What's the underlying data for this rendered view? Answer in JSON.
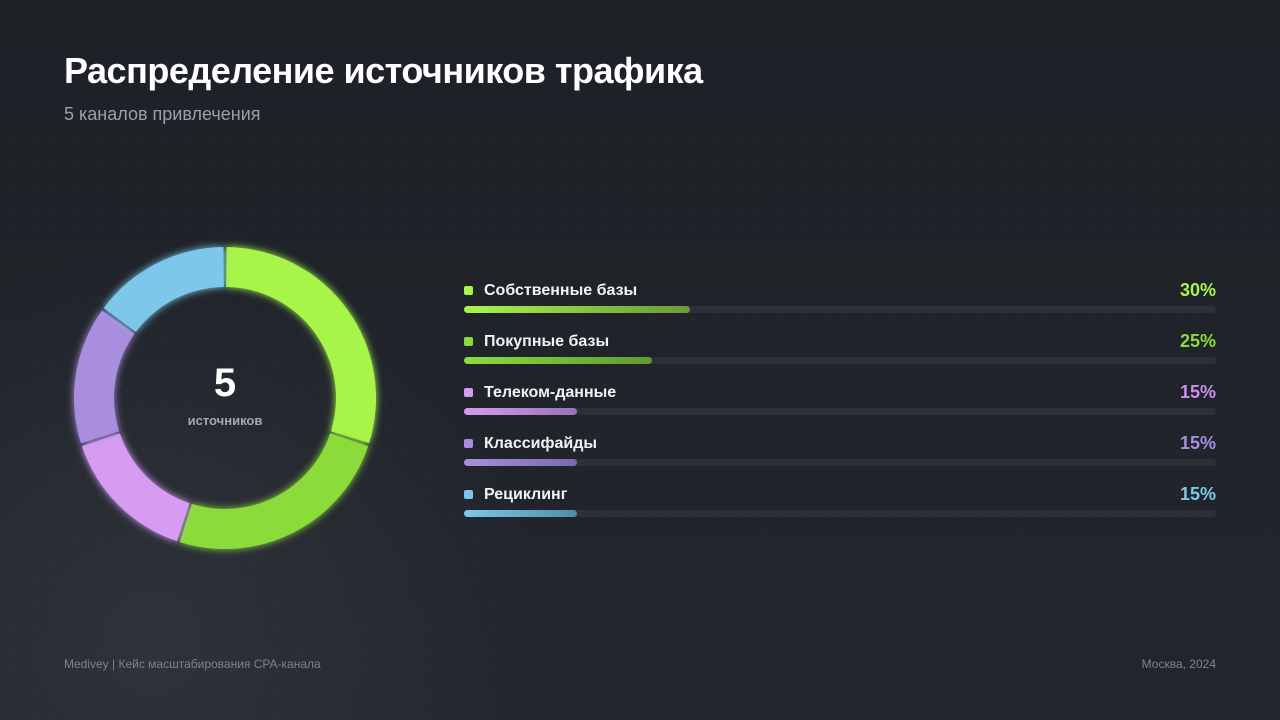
{
  "header": {
    "title": "Распределение источников трафика",
    "subtitle": "5 каналов привлечения"
  },
  "donut_center": {
    "count": "5",
    "caption": "источников"
  },
  "chart_data": {
    "type": "pie",
    "style": "donut",
    "categories": [
      "Собственные базы",
      "Покупные базы",
      "Телеком-данные",
      "Классифайды",
      "Рециклинг"
    ],
    "values": [
      30,
      25,
      15,
      15,
      15
    ],
    "value_labels": [
      "30%",
      "25%",
      "15%",
      "15%",
      "15%"
    ],
    "colors": [
      "#a8f54a",
      "#8bdc3a",
      "#d59cf2",
      "#a98ee0",
      "#7dc8ea"
    ],
    "bar_gradient_end": [
      "#6a9a3a",
      "#5e9a32",
      "#9a72b4",
      "#7d68b0",
      "#4f8eaa"
    ],
    "label_value_colors": [
      "#a8f54a",
      "#8bdc3a",
      "#c990ea",
      "#a98ee0",
      "#7dc8ea"
    ],
    "legend_position": "right",
    "bar_max": 100
  },
  "footer": {
    "left": "Medivey | Кейс масштабирования CPA-канала",
    "right": "Москва, 2024"
  }
}
